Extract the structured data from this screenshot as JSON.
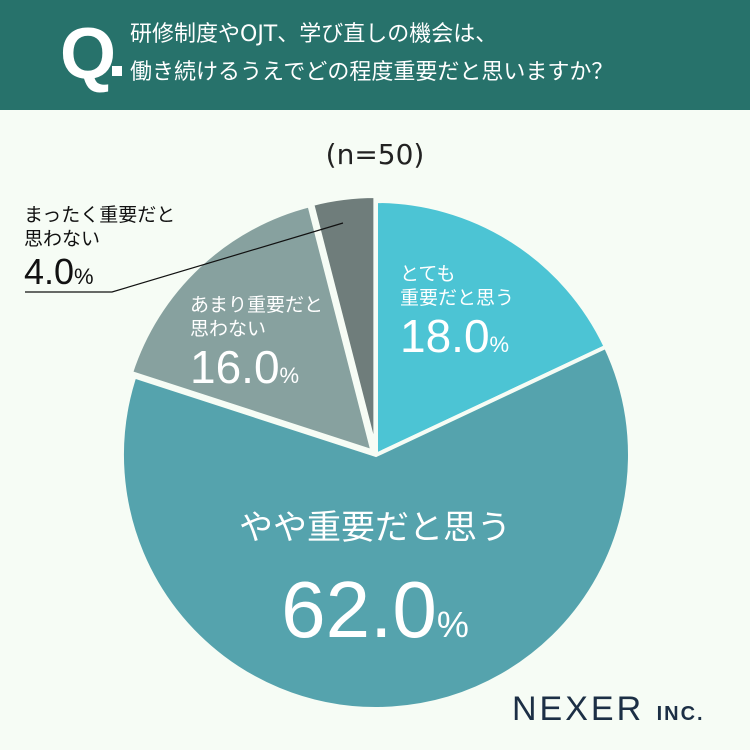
{
  "header": {
    "q_mark": "Q",
    "line1": "研修制度やOJT、学び直しの機会は、",
    "line2": "働き続けるうえでどの程度重要だと思いますか？"
  },
  "sample": "(n=50)",
  "logo": {
    "main": "NEXER",
    "suffix": "INC."
  },
  "chart_data": {
    "type": "pie",
    "title": "研修制度やOJT、学び直しの機会は、働き続けるうえでどの程度重要だと思いますか？",
    "n": 50,
    "slices": [
      {
        "label_line1": "とても",
        "label_line2": "重要だと思う",
        "value": 18.0,
        "value_text": "18.0",
        "color": "#4cc4d4"
      },
      {
        "label_line1": "やや重要だと思う",
        "label_line2": "",
        "value": 62.0,
        "value_text": "62.0",
        "color": "#55a3ad"
      },
      {
        "label_line1": "あまり重要だと",
        "label_line2": "思わない",
        "value": 16.0,
        "value_text": "16.0",
        "color": "#87a19f"
      },
      {
        "label_line1": "まったく重要だと",
        "label_line2": "思わない",
        "value": 4.0,
        "value_text": "4.0",
        "color": "#6f7d7b"
      }
    ],
    "unit": "%"
  }
}
